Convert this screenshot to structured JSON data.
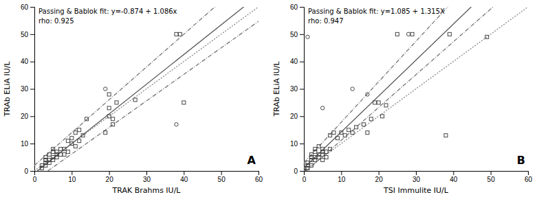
{
  "chart_data": [
    {
      "type": "scatter",
      "title": "Passing & Bablok fit: y=-0.874 + 1.086x",
      "subtitle": "rho: 0.925",
      "annotations": [
        "A"
      ],
      "x_label": "TRAK Brahms IU/L",
      "y_label": "TRAb ELiA IU/L",
      "xlim": [
        0,
        60
      ],
      "ylim": [
        0,
        60
      ],
      "xticks": [
        0,
        10,
        20,
        30,
        40,
        50,
        60
      ],
      "yticks": [
        0,
        10,
        20,
        30,
        40,
        50,
        60
      ],
      "grid": false,
      "series": [
        {
          "type": "line",
          "line_style": "dotted",
          "color": "#888888",
          "x": [
            0,
            60
          ],
          "values": [
            0,
            60
          ]
        },
        {
          "type": "line",
          "line_style": "solid",
          "color": "#555555",
          "x": [
            0.8048,
            56.0534
          ],
          "values": [
            0,
            60
          ]
        },
        {
          "type": "line",
          "line_style": "dashdot",
          "color": "#777777",
          "x": [
            3.6082,
            60
          ],
          "values": [
            0,
            54.7
          ]
        },
        {
          "type": "line",
          "line_style": "dashdot",
          "color": "#777777",
          "x": [
            0,
            48.3333
          ],
          "values": [
            2,
            60
          ]
        },
        {
          "type": "scatter",
          "marker": "square",
          "color": "#444444",
          "x": [
            2,
            2,
            3,
            3,
            3,
            3,
            4,
            4,
            4,
            5,
            5,
            5,
            5,
            6,
            6,
            6,
            7,
            7,
            8,
            8,
            9,
            9,
            10,
            10,
            11,
            11,
            12,
            12,
            13,
            14,
            19,
            20,
            20,
            20,
            21,
            21,
            22,
            27,
            38,
            39,
            40
          ],
          "values": [
            1,
            2,
            2,
            3,
            4,
            5,
            3,
            4,
            6,
            4,
            5,
            7,
            8,
            5,
            6,
            7,
            6,
            8,
            6,
            8,
            7,
            11,
            10,
            12,
            9,
            14,
            11,
            15,
            13,
            19,
            14,
            20,
            23,
            28,
            17,
            19,
            25,
            26,
            50,
            50,
            25
          ]
        },
        {
          "type": "scatter",
          "marker": "circle",
          "color": "#444444",
          "x": [
            19,
            38
          ],
          "values": [
            30,
            17
          ]
        }
      ]
    },
    {
      "type": "scatter",
      "title": "Passing & Bablok fit: y=1.085 + 1.315X",
      "subtitle": "rho: 0.947",
      "annotations": [
        "B"
      ],
      "x_label": "TSI Immulite IU/L",
      "y_label": "TRAb ELiA IU/L",
      "xlim": [
        0,
        60
      ],
      "ylim": [
        0,
        60
      ],
      "xticks": [
        0,
        10,
        20,
        30,
        40,
        50,
        60
      ],
      "yticks": [
        0,
        10,
        20,
        30,
        40,
        50,
        60
      ],
      "grid": false,
      "series": [
        {
          "type": "line",
          "line_style": "dotted",
          "color": "#888888",
          "x": [
            0,
            60
          ],
          "values": [
            0,
            60
          ]
        },
        {
          "type": "line",
          "line_style": "solid",
          "color": "#555555",
          "x": [
            0,
            44.8023
          ],
          "values": [
            1.085,
            60
          ]
        },
        {
          "type": "line",
          "line_style": "dashdot",
          "color": "#777777",
          "x": [
            0.6667,
            50.6667
          ],
          "values": [
            0,
            60
          ]
        },
        {
          "type": "line",
          "line_style": "dashdot",
          "color": "#777777",
          "x": [
            0,
            38.5135
          ],
          "values": [
            3,
            60
          ]
        },
        {
          "type": "scatter",
          "marker": "square",
          "color": "#444444",
          "x": [
            0,
            0,
            1,
            1,
            1,
            2,
            2,
            2,
            2,
            3,
            3,
            3,
            3,
            4,
            4,
            4,
            5,
            5,
            5,
            5,
            6,
            6,
            7,
            7,
            8,
            9,
            10,
            11,
            12,
            13,
            14,
            16,
            17,
            18,
            19,
            20,
            21,
            22,
            25,
            29,
            38,
            39,
            49
          ],
          "values": [
            0,
            1,
            1,
            2,
            3,
            2,
            4,
            5,
            6,
            4,
            5,
            7,
            8,
            5,
            6,
            9,
            4,
            6,
            7,
            8,
            5,
            7,
            8,
            13,
            14,
            12,
            14,
            13,
            15,
            14,
            16,
            17,
            14,
            19,
            25,
            25,
            20,
            24,
            50,
            50,
            13,
            50,
            49
          ]
        },
        {
          "type": "scatter",
          "marker": "circle",
          "color": "#444444",
          "x": [
            1,
            5,
            13,
            17,
            28
          ],
          "values": [
            49,
            23,
            30,
            28,
            50
          ]
        }
      ]
    }
  ]
}
